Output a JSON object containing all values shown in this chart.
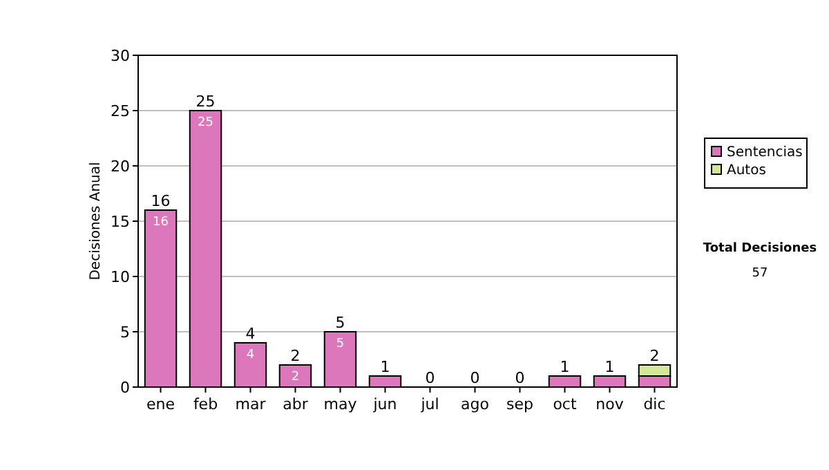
{
  "chart_data": {
    "type": "bar",
    "stacked": true,
    "ylabel": "Decisiones Anual",
    "categories": [
      "ene",
      "feb",
      "mar",
      "abr",
      "may",
      "jun",
      "jul",
      "ago",
      "sep",
      "oct",
      "nov",
      "dic"
    ],
    "series": [
      {
        "name": "Sentencias",
        "color": "#dd77bb",
        "values": [
          16,
          25,
          4,
          2,
          5,
          1,
          0,
          0,
          0,
          1,
          1,
          1
        ],
        "value_labels": [
          "16",
          "25",
          "4",
          "2",
          "5",
          null,
          null,
          null,
          null,
          null,
          null,
          null
        ]
      },
      {
        "name": "Autos",
        "color": "#d4e89a",
        "values": [
          0,
          0,
          0,
          0,
          0,
          0,
          0,
          0,
          0,
          0,
          0,
          1
        ]
      }
    ],
    "totals": [
      "16",
      "25",
      "4",
      "2",
      "5",
      "1",
      "0",
      "0",
      "0",
      "1",
      "1",
      "2"
    ],
    "ylim": [
      0,
      30
    ],
    "yticks": [
      0,
      5,
      10,
      15,
      20,
      25,
      30
    ],
    "grid": "y",
    "legend": "right",
    "annotations": [
      "Total Decisiones",
      "57"
    ]
  }
}
